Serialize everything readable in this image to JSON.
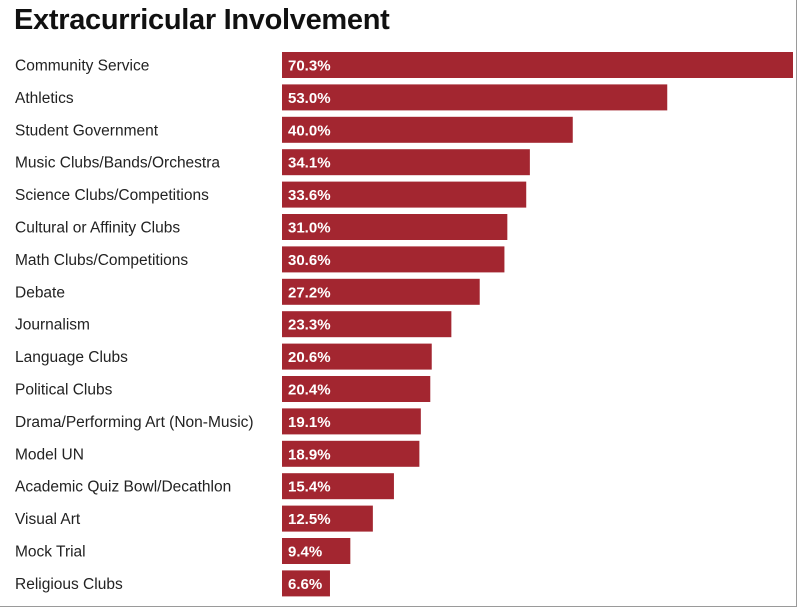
{
  "title": "Extracurricular Involvement",
  "colors": {
    "bar": "#a32630",
    "bar_label": "#ffffff",
    "text": "#222222"
  },
  "chart_data": {
    "type": "bar",
    "orientation": "horizontal",
    "title": "Extracurricular Involvement",
    "xlabel": "",
    "ylabel": "",
    "xlim": [
      0,
      70.3
    ],
    "grid": false,
    "legend": "none",
    "categories": [
      "Community Service",
      "Athletics",
      "Student Government",
      "Music Clubs/Bands/Orchestra",
      "Science Clubs/Competitions",
      "Cultural or Affinity Clubs",
      "Math Clubs/Competitions",
      "Debate",
      "Journalism",
      "Language Clubs",
      "Political Clubs",
      "Drama/Performing Art (Non-Music)",
      "Model UN",
      "Academic Quiz Bowl/Decathlon",
      "Visual Art",
      "Mock Trial",
      "Religious Clubs"
    ],
    "values": [
      70.3,
      53.0,
      40.0,
      34.1,
      33.6,
      31.0,
      30.6,
      27.2,
      23.3,
      20.6,
      20.4,
      19.1,
      18.9,
      15.4,
      12.5,
      9.4,
      6.6
    ],
    "value_labels": [
      "70.3%",
      "53.0%",
      "40.0%",
      "34.1%",
      "33.6%",
      "31.0%",
      "30.6%",
      "27.2%",
      "23.3%",
      "20.6%",
      "20.4%",
      "19.1%",
      "18.9%",
      "15.4%",
      "12.5%",
      "9.4%",
      "6.6%"
    ]
  }
}
